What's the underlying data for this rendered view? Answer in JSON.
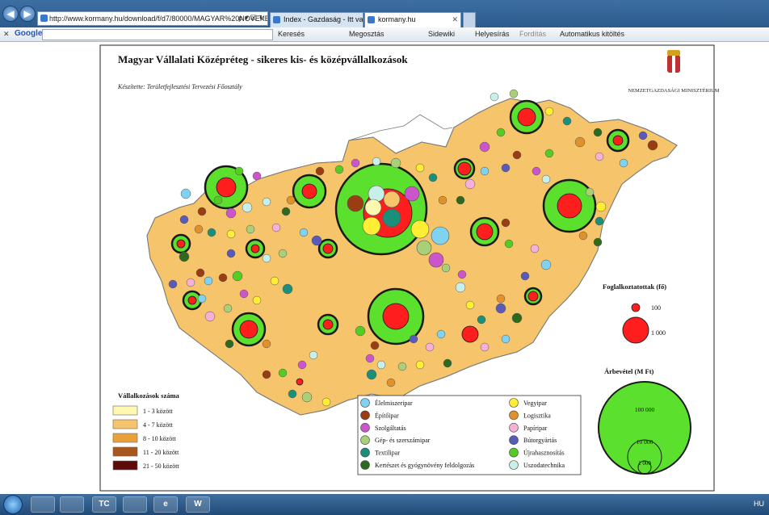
{
  "browser": {
    "address_url": "http://www.kormany.hu/download/f/d7/80000/MAGYAR%20NOVEKE",
    "address_controls": "ρ ▾ ☒ ↻ ✕",
    "tabs": [
      {
        "label": "Index - Gazdaság - Itt van Mat...",
        "active": false
      },
      {
        "label": "kormany.hu",
        "active": true
      }
    ],
    "tab_close": "✕",
    "back_glyph": "◀",
    "forward_glyph": "▶"
  },
  "toolbar": {
    "close": "✕",
    "brand": "Google",
    "items": [
      "Keresés",
      "Megosztás",
      "Sidewiki",
      "Helyesírás",
      "Fordítás",
      "Automatikus kitöltés"
    ]
  },
  "map": {
    "title": "Magyar Vállalati Középréteg - sikeres kis- és középvállalkozások",
    "subtitle": "Készítette: Területfejlesztési Tervezési Főosztály",
    "ministry": "NEMZETGAZDASÁGI MINISZTÉRIUM",
    "colors": {
      "c1": "#fff8b0",
      "c2": "#f6c46a",
      "c3": "#e9a23a",
      "c4": "#a8561c",
      "c5": "#5c0a0a",
      "ring": "#5ce02e",
      "core": "#ff1e1e"
    },
    "count_legend": {
      "title": "Vállalkozások száma",
      "items": [
        "1 - 3 között",
        "4 - 7 között",
        "8 - 10 között",
        "11 - 20 között",
        "21 - 50 között"
      ]
    },
    "sector_legend": [
      {
        "label": "Élelmiszeripar",
        "color": "#7fd2f0"
      },
      {
        "label": "Vegyipar",
        "color": "#ffee33"
      },
      {
        "label": "Építőipar",
        "color": "#9b3d12"
      },
      {
        "label": "Logisztika",
        "color": "#e0912a"
      },
      {
        "label": "Szolgáltatás",
        "color": "#cc55cc"
      },
      {
        "label": "Papíripar",
        "color": "#f7b0d8"
      },
      {
        "label": "Gép- és szerszámipar",
        "color": "#a9cf78"
      },
      {
        "label": "Bútorgyártás",
        "color": "#5a5ab8"
      },
      {
        "label": "Textilipar",
        "color": "#1a8f7a"
      },
      {
        "label": "Újrahasznosítás",
        "color": "#55cc22"
      },
      {
        "label": "Kertészet és gyógynövény feldolgozás",
        "color": "#2e6a1e"
      },
      {
        "label": "Uszodatechnika",
        "color": "#c8f0e8"
      }
    ],
    "employees_legend": {
      "title": "Foglalkoztatottak (fő)",
      "small": "100",
      "large": "1 000"
    },
    "revenue_legend": {
      "title": "Árbevétel (M Ft)",
      "values": [
        "100 000",
        "10 000",
        "1 000"
      ]
    }
  },
  "taskbar": {
    "icons": [
      "explorer",
      "media",
      "TC",
      "paint",
      "ie",
      "word"
    ],
    "ie_glyph": "e",
    "word_glyph": "W",
    "tc_glyph": "TC",
    "tray": "HU"
  }
}
